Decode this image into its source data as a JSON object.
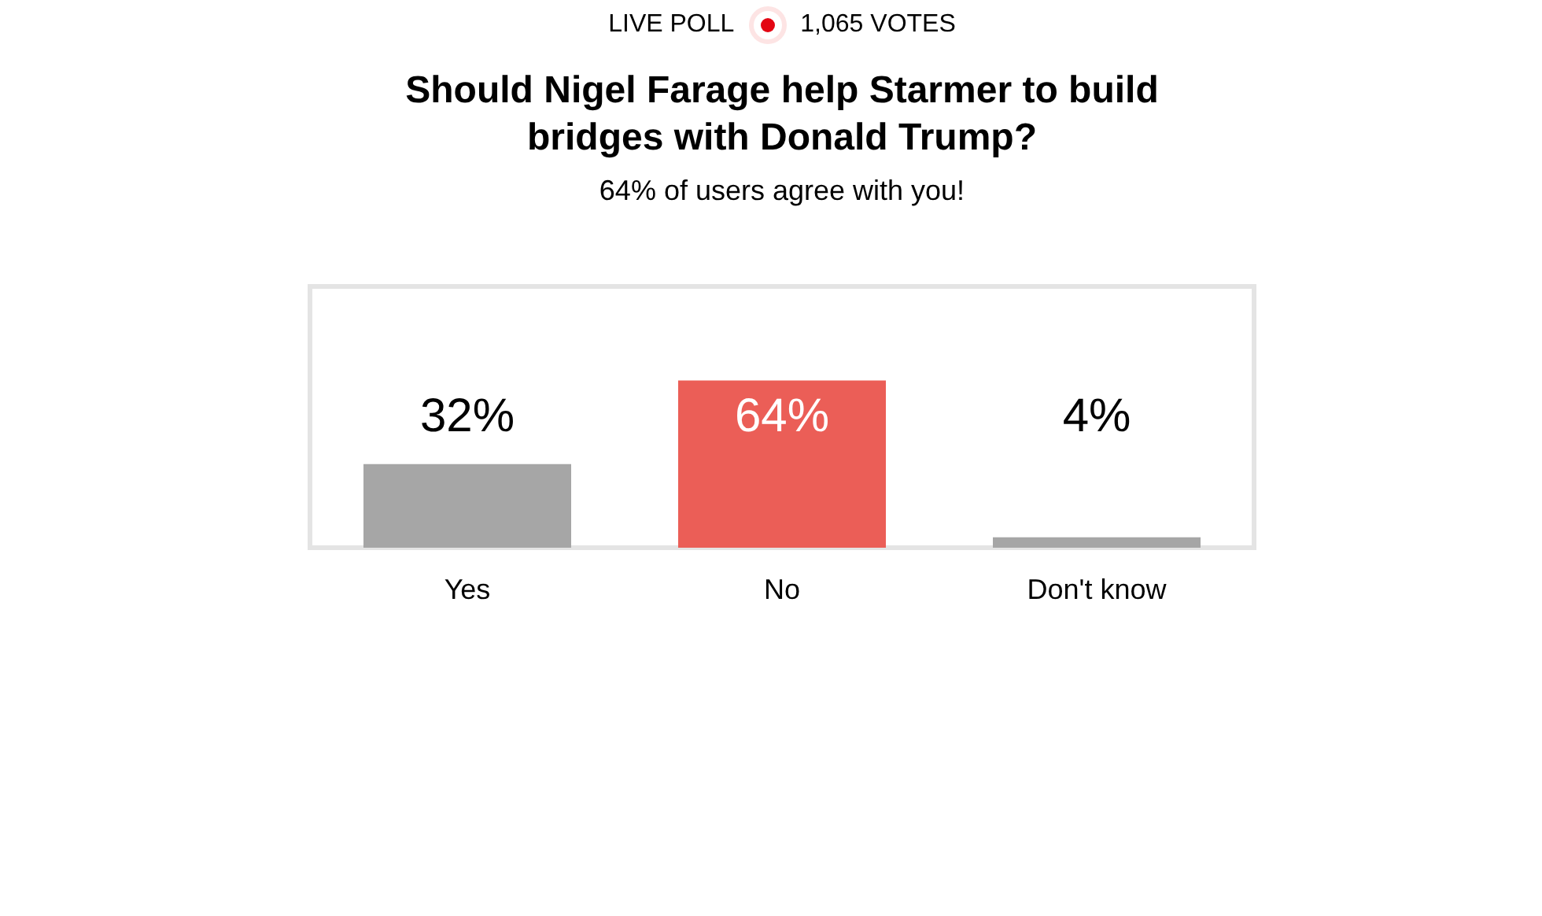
{
  "chart_data": {
    "type": "bar",
    "title": "Should Nigel Farage help Starmer to build bridges with Donald Trump?",
    "subtitle": "64% of users agree with you!",
    "annotations": [
      "LIVE POLL",
      "1,065 VOTES"
    ],
    "categories": [
      "Yes",
      "No",
      "Don't know"
    ],
    "values": [
      32,
      64,
      4
    ],
    "colors": [
      "#a6a6a6",
      "#eb5e57",
      "#a6a6a6"
    ],
    "value_labels": [
      "32%",
      "64%",
      "4%"
    ],
    "ylim": [
      0,
      100
    ],
    "tick_labels": "x"
  }
}
